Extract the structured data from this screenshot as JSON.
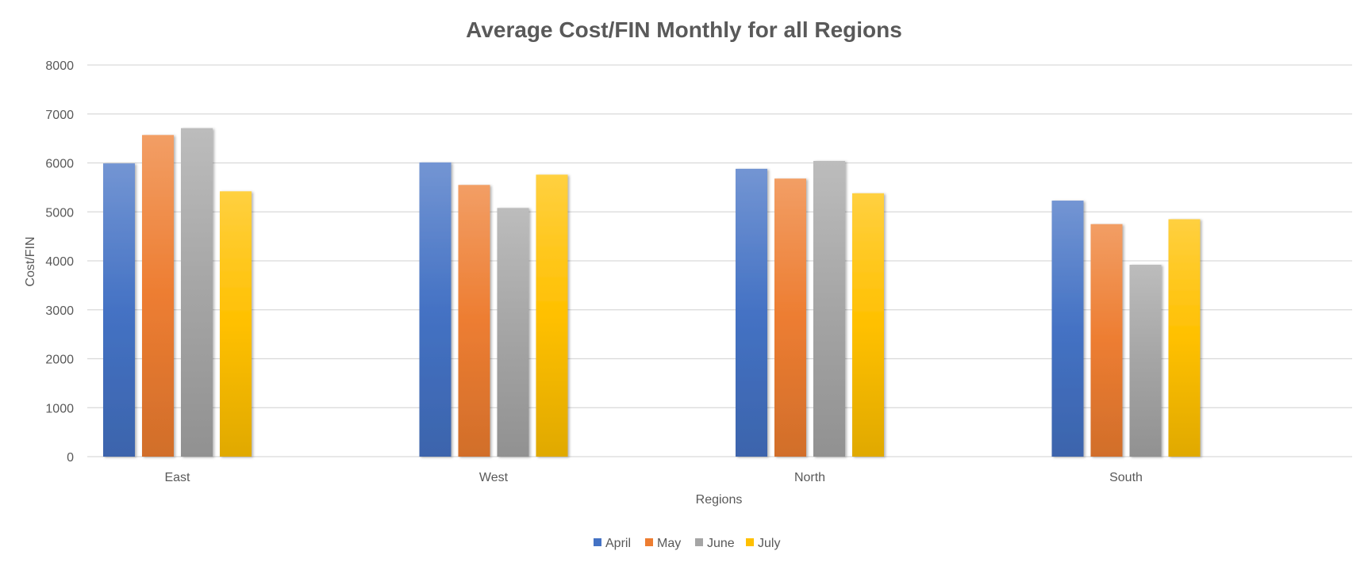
{
  "chart_data": {
    "type": "bar",
    "title": "Average Cost/FIN Monthly for all Regions",
    "xlabel": "Regions",
    "ylabel": "Cost/FIN",
    "categories": [
      "East",
      "West",
      "North",
      "South"
    ],
    "ylim": [
      0,
      8000
    ],
    "yticks": [
      0,
      1000,
      2000,
      3000,
      4000,
      5000,
      6000,
      7000,
      8000
    ],
    "grid": true,
    "legend_position": "bottom",
    "series": [
      {
        "name": "April",
        "values": [
          5990,
          6010,
          5880,
          5230
        ],
        "color": "#4472C4"
      },
      {
        "name": "May",
        "values": [
          6570,
          5550,
          5680,
          4750
        ],
        "color": "#ED7D31"
      },
      {
        "name": "June",
        "values": [
          6710,
          5080,
          6040,
          3920
        ],
        "color": "#A5A5A5"
      },
      {
        "name": "July",
        "values": [
          5420,
          5760,
          5380,
          4850
        ],
        "color": "#FFC000"
      }
    ]
  }
}
